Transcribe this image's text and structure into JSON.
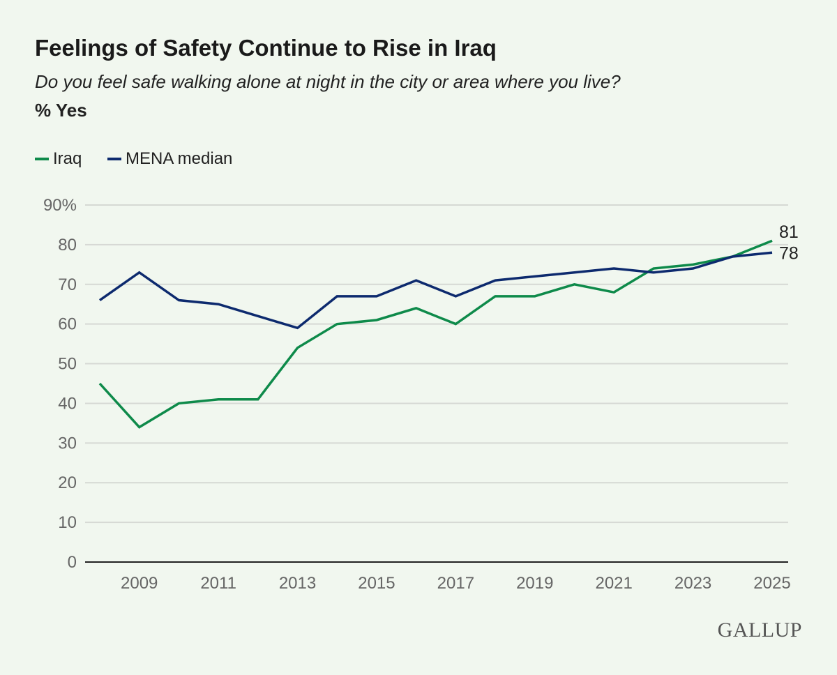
{
  "header": {
    "title": "Feelings of Safety Continue to Rise in Iraq",
    "subtitle": "Do you feel safe walking alone at night in the city or area where you live?",
    "unit": "% Yes"
  },
  "logo": "GALLUP",
  "chart_data": {
    "type": "line",
    "title": "Feelings of Safety Continue to Rise in Iraq",
    "x": [
      2008,
      2009,
      2010,
      2011,
      2012,
      2013,
      2014,
      2015,
      2016,
      2017,
      2018,
      2019,
      2020,
      2021,
      2022,
      2023,
      2024,
      2025
    ],
    "series": [
      {
        "name": "Iraq",
        "color": "#0e8a4a",
        "values": [
          45,
          34,
          40,
          41,
          41,
          54,
          60,
          61,
          64,
          60,
          67,
          67,
          70,
          68,
          74,
          75,
          77,
          81
        ],
        "end_label": "81"
      },
      {
        "name": "MENA median",
        "color": "#0d2a6e",
        "values": [
          66,
          73,
          66,
          65,
          62,
          59,
          67,
          67,
          71,
          67,
          71,
          72,
          73,
          74,
          73,
          74,
          77,
          78
        ],
        "end_label": "78"
      }
    ],
    "ylim": [
      0,
      90
    ],
    "y_ticks": [
      "0",
      "10",
      "20",
      "30",
      "40",
      "50",
      "60",
      "70",
      "80",
      "90%"
    ],
    "x_ticks": [
      "2009",
      "2011",
      "2013",
      "2015",
      "2017",
      "2019",
      "2021",
      "2023",
      "2025"
    ],
    "grid": true,
    "legend": "top-left"
  }
}
